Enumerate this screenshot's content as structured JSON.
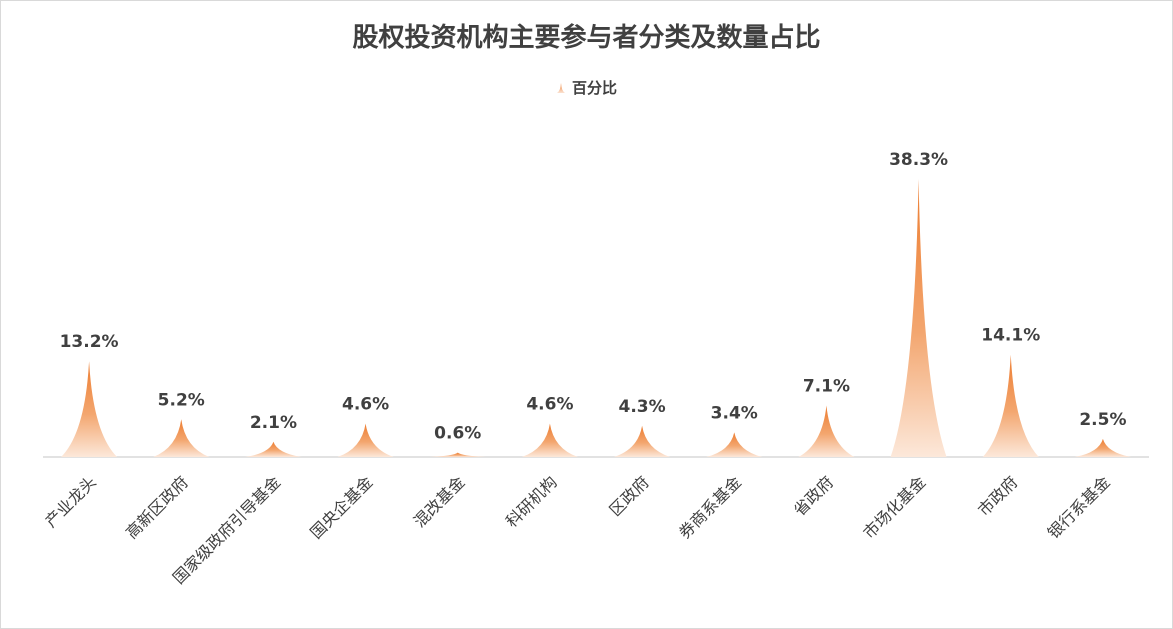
{
  "chart_data": {
    "type": "bar",
    "title": "股权投资机构主要参与者分类及数量占比",
    "legend": {
      "position": "top",
      "entries": [
        "百分比"
      ]
    },
    "series": [
      {
        "name": "百分比",
        "values": [
          13.2,
          5.2,
          2.1,
          4.6,
          0.6,
          4.6,
          4.3,
          3.4,
          7.1,
          38.3,
          14.1,
          2.5
        ]
      }
    ],
    "categories": [
      "产业龙头",
      "高新区政府",
      "国家级政府引导基金",
      "国央企基金",
      "混改基金",
      "科研机构",
      "区政府",
      "券商系基金",
      "省政府",
      "市场化基金",
      "市政府",
      "银行系基金"
    ],
    "data_labels": [
      "13.2%",
      "5.2%",
      "2.1%",
      "4.6%",
      "0.6%",
      "4.6%",
      "4.3%",
      "3.4%",
      "7.1%",
      "38.3%",
      "14.1%",
      "2.5%"
    ],
    "ylim": [
      0,
      40
    ],
    "grid": false,
    "colors": {
      "peak": "#ED7D31",
      "base": "#FBE3D3",
      "axis": "#d9d9d9",
      "text": "#404040"
    }
  }
}
